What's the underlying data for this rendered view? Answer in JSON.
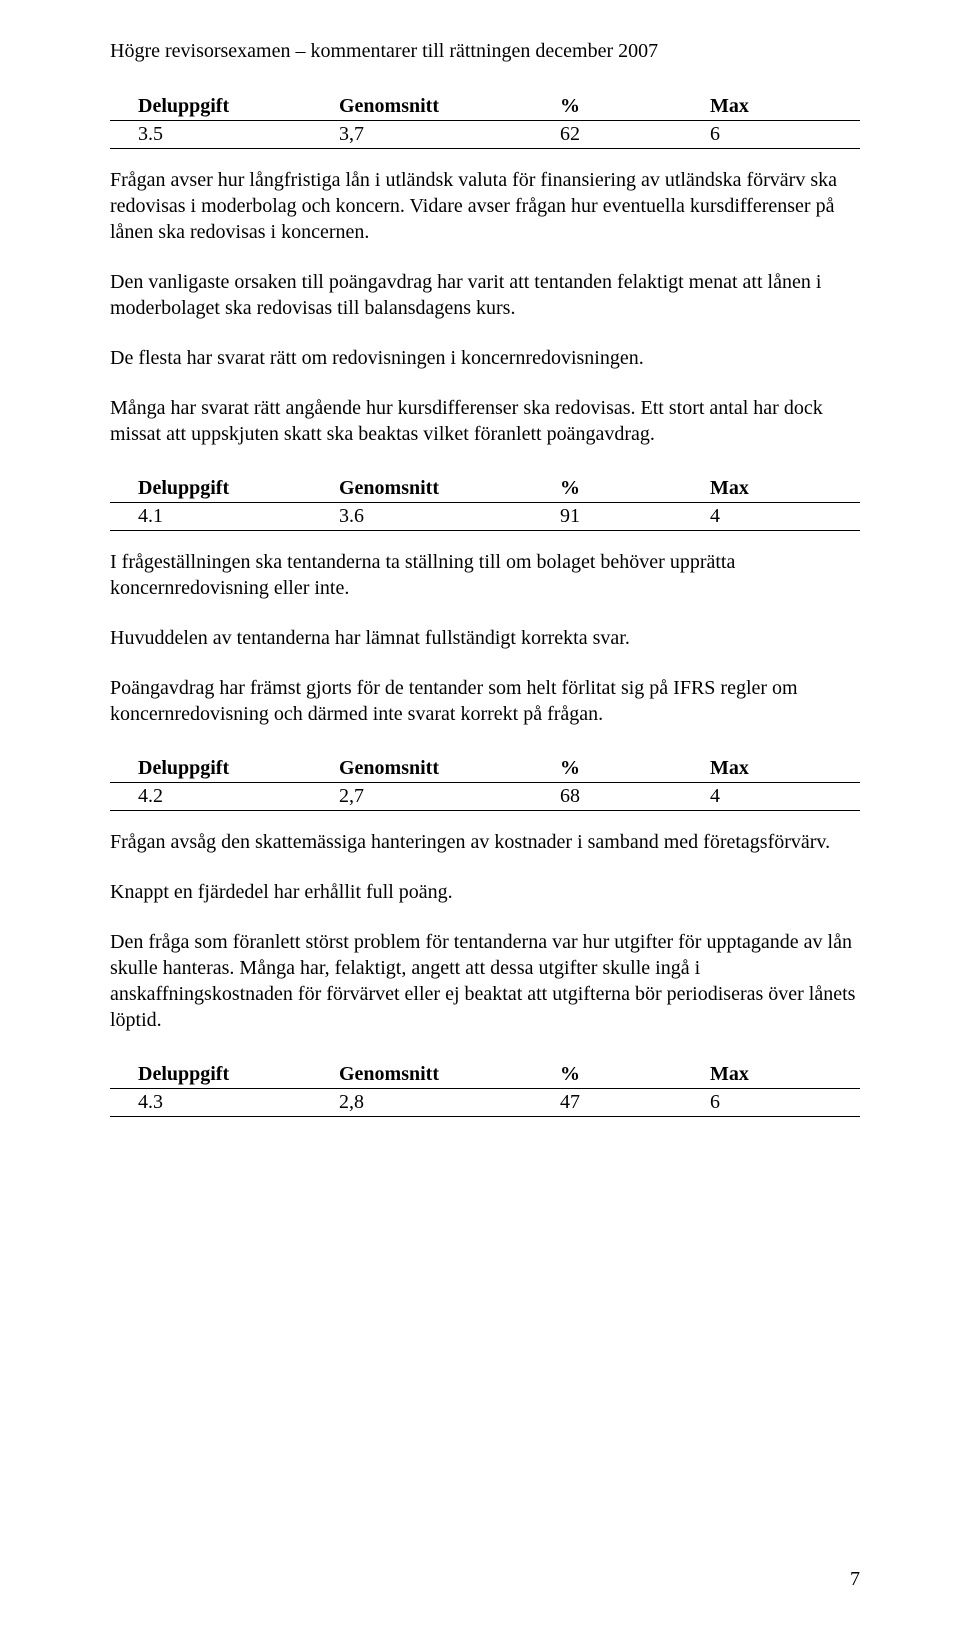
{
  "header": "Högre revisorsexamen – kommentarer till rättningen december 2007",
  "columns": {
    "c1": "Deluppgift",
    "c2": "Genomsnitt",
    "c3": "%",
    "c4": "Max"
  },
  "sections": [
    {
      "row": {
        "c1": "3.5",
        "c2": "3,7",
        "c3": "62",
        "c4": "6"
      },
      "paras": [
        "Frågan avser hur långfristiga lån i utländsk valuta för finansiering av utländska förvärv ska redovisas i moderbolag och koncern. Vidare avser frågan hur eventuella kursdifferenser på lånen ska redovisas i koncernen.",
        "Den vanligaste orsaken till poängavdrag har varit att tentanden felaktigt menat att lånen i moderbolaget ska redovisas till balansdagens kurs.",
        "De flesta har svarat rätt om redovisningen i koncernredovisningen.",
        "Många har svarat rätt angående hur kursdifferenser ska redovisas. Ett stort antal har dock missat att uppskjuten skatt ska beaktas vilket föranlett poängavdrag."
      ]
    },
    {
      "row": {
        "c1": "4.1",
        "c2": "3.6",
        "c3": "91",
        "c4": "4"
      },
      "paras": [
        "I frågeställningen ska tentanderna ta ställning till om bolaget behöver upprätta koncernredovisning eller inte.",
        "Huvuddelen av tentanderna har lämnat fullständigt korrekta svar.",
        "Poängavdrag har främst gjorts för de tentander som helt förlitat sig på IFRS regler om koncernredovisning och därmed inte svarat korrekt på frågan."
      ]
    },
    {
      "row": {
        "c1": "4.2",
        "c2": "2,7",
        "c3": "68",
        "c4": "4"
      },
      "paras": [
        "Frågan avsåg den skattemässiga hanteringen av kostnader i samband med företagsförvärv.",
        "Knappt en fjärdedel har erhållit full poäng.",
        "Den fråga som föranlett störst problem för tentanderna var hur utgifter för upptagande av lån skulle hanteras. Många har, felaktigt, angett att dessa utgifter skulle ingå i anskaffningskostnaden för förvärvet eller ej beaktat att utgifterna bör periodiseras över lånets löptid."
      ]
    },
    {
      "row": {
        "c1": "4.3",
        "c2": "2,8",
        "c3": "47",
        "c4": "6"
      },
      "paras": []
    }
  ],
  "page_number": "7"
}
